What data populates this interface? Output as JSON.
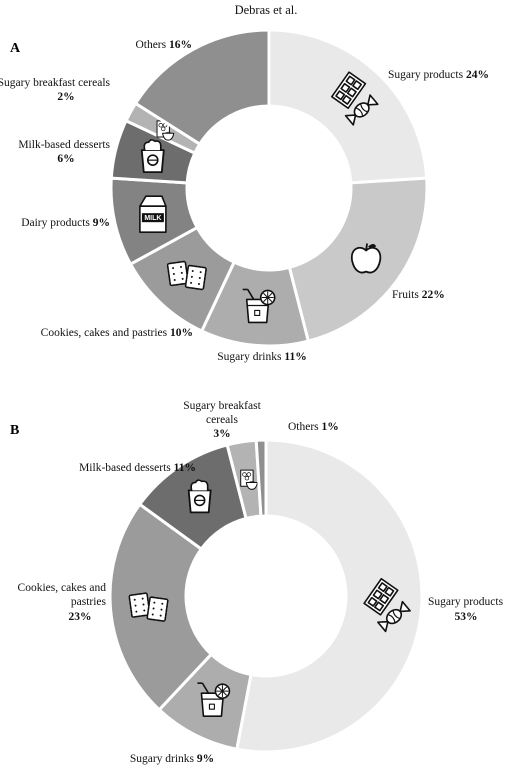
{
  "header": "Debras et al.",
  "chart_data": [
    {
      "type": "pie",
      "panel": "A",
      "hole": true,
      "start_angle": 0,
      "slices": [
        {
          "label": "Sugary products",
          "value": 24,
          "pct": "24%",
          "color": "#e9e9e9",
          "icon": "candy-icon"
        },
        {
          "label": "Fruits",
          "value": 22,
          "pct": "22%",
          "color": "#c9c9c9",
          "icon": "apple-icon"
        },
        {
          "label": "Sugary drinks",
          "value": 11,
          "pct": "11%",
          "color": "#adadad",
          "icon": "drink-icon"
        },
        {
          "label": "Cookies, cakes and pastries",
          "value": 10,
          "pct": "10%",
          "color": "#9b9b9b",
          "icon": "cookie-icon"
        },
        {
          "label": "Dairy products",
          "value": 9,
          "pct": "9%",
          "color": "#838383",
          "icon": "milk-carton-icon"
        },
        {
          "label": "Milk-based desserts",
          "value": 6,
          "pct": "6%",
          "color": "#6d6d6d",
          "icon": "dessert-cup-icon"
        },
        {
          "label": "Sugary breakfast cereals",
          "value": 2,
          "pct": "2%",
          "color": "#b3b3b3",
          "icon": "cereal-icon"
        },
        {
          "label": "Others",
          "value": 16,
          "pct": "16%",
          "color": "#8f8f8f",
          "icon": ""
        }
      ]
    },
    {
      "type": "pie",
      "panel": "B",
      "hole": true,
      "start_angle": 0,
      "slices": [
        {
          "label": "Sugary products",
          "value": 53,
          "pct": "53%",
          "color": "#e9e9e9",
          "icon": "candy-icon"
        },
        {
          "label": "Sugary drinks",
          "value": 9,
          "pct": "9%",
          "color": "#adadad",
          "icon": "drink-icon"
        },
        {
          "label": "Cookies, cakes and pastries",
          "value": 23,
          "pct": "23%",
          "color": "#9b9b9b",
          "icon": "cookie-icon"
        },
        {
          "label": "Milk-based desserts",
          "value": 11,
          "pct": "11%",
          "color": "#6d6d6d",
          "icon": "dessert-cup-icon"
        },
        {
          "label": "Sugary breakfast cereals",
          "value": 3,
          "pct": "3%",
          "color": "#b3b3b3",
          "icon": "cereal-icon"
        },
        {
          "label": "Others",
          "value": 1,
          "pct": "1%",
          "color": "#8f8f8f",
          "icon": ""
        }
      ]
    }
  ]
}
